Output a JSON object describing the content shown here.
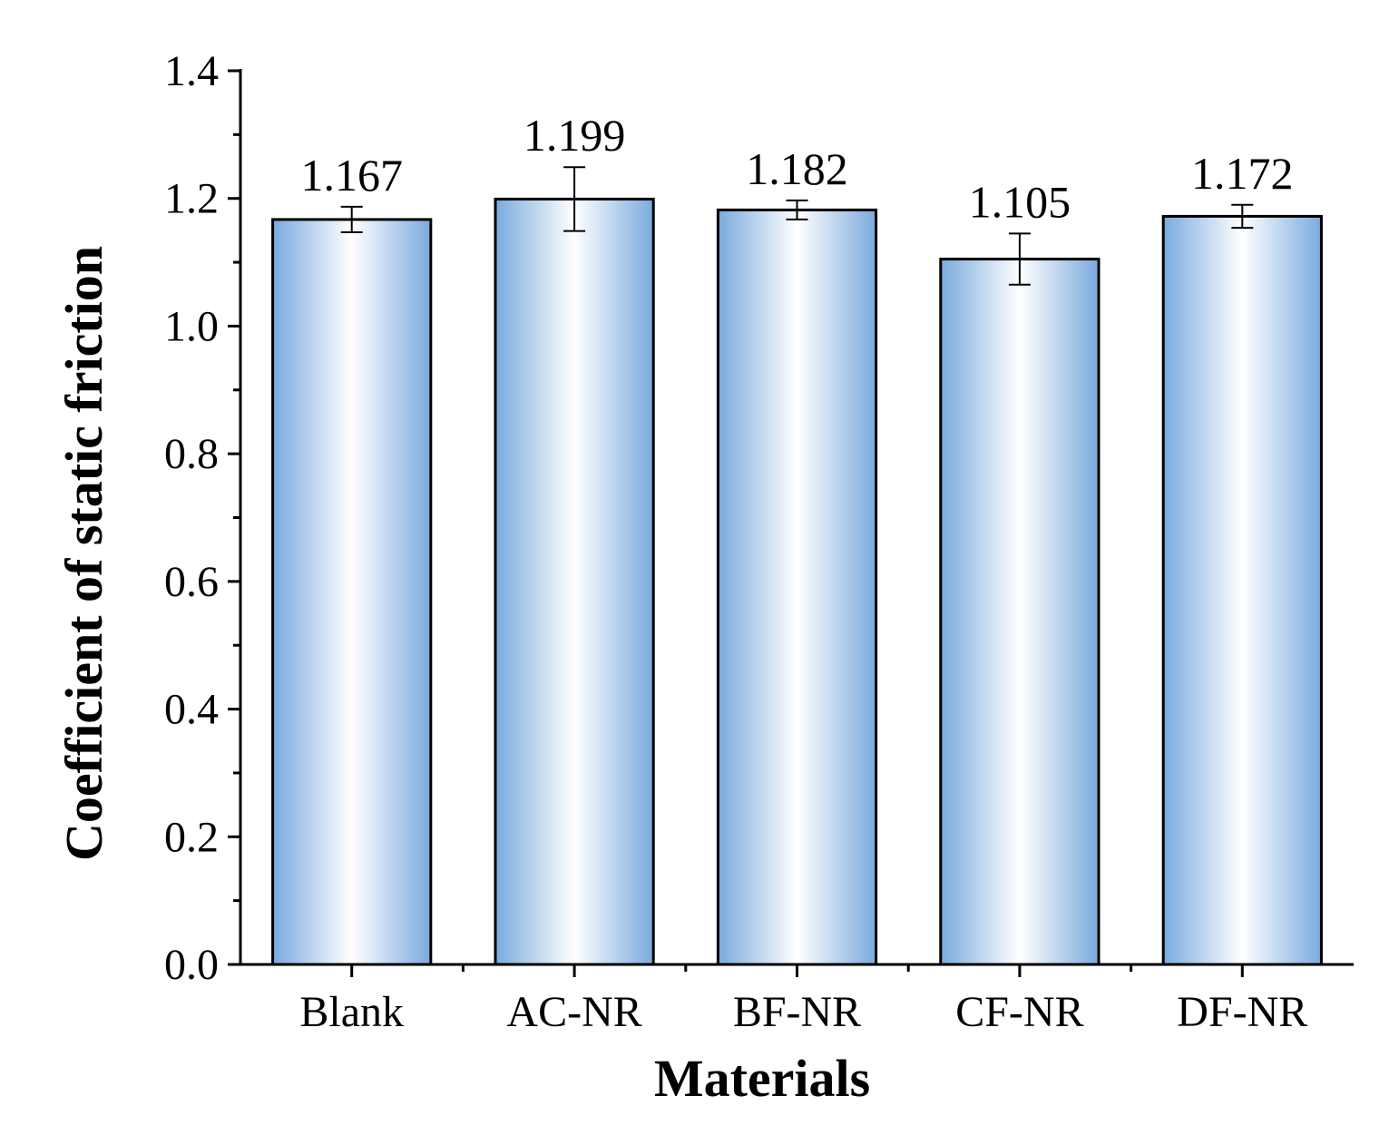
{
  "chart_data": {
    "type": "bar",
    "title": "",
    "xlabel": "Materials",
    "ylabel": "Coefficient of static friction",
    "categories": [
      "Blank",
      "AC-NR",
      "BF-NR",
      "CF-NR",
      "DF-NR"
    ],
    "values": [
      1.167,
      1.199,
      1.182,
      1.105,
      1.172
    ],
    "value_labels": [
      "1.167",
      "1.199",
      "1.182",
      "1.105",
      "1.172"
    ],
    "error": [
      0.02,
      0.05,
      0.015,
      0.04,
      0.018
    ],
    "ylim": [
      0,
      1.4
    ],
    "yticks": [
      0.0,
      0.2,
      0.4,
      0.6,
      0.8,
      1.0,
      1.2,
      1.4
    ],
    "ytick_labels": [
      "0.0",
      "0.2",
      "0.4",
      "0.6",
      "0.8",
      "1.0",
      "1.2",
      "1.4"
    ],
    "grid": false,
    "colors": {
      "bar_edge": "#7aaadd",
      "bar_center": "#ffffff",
      "outline": "#000000"
    }
  }
}
